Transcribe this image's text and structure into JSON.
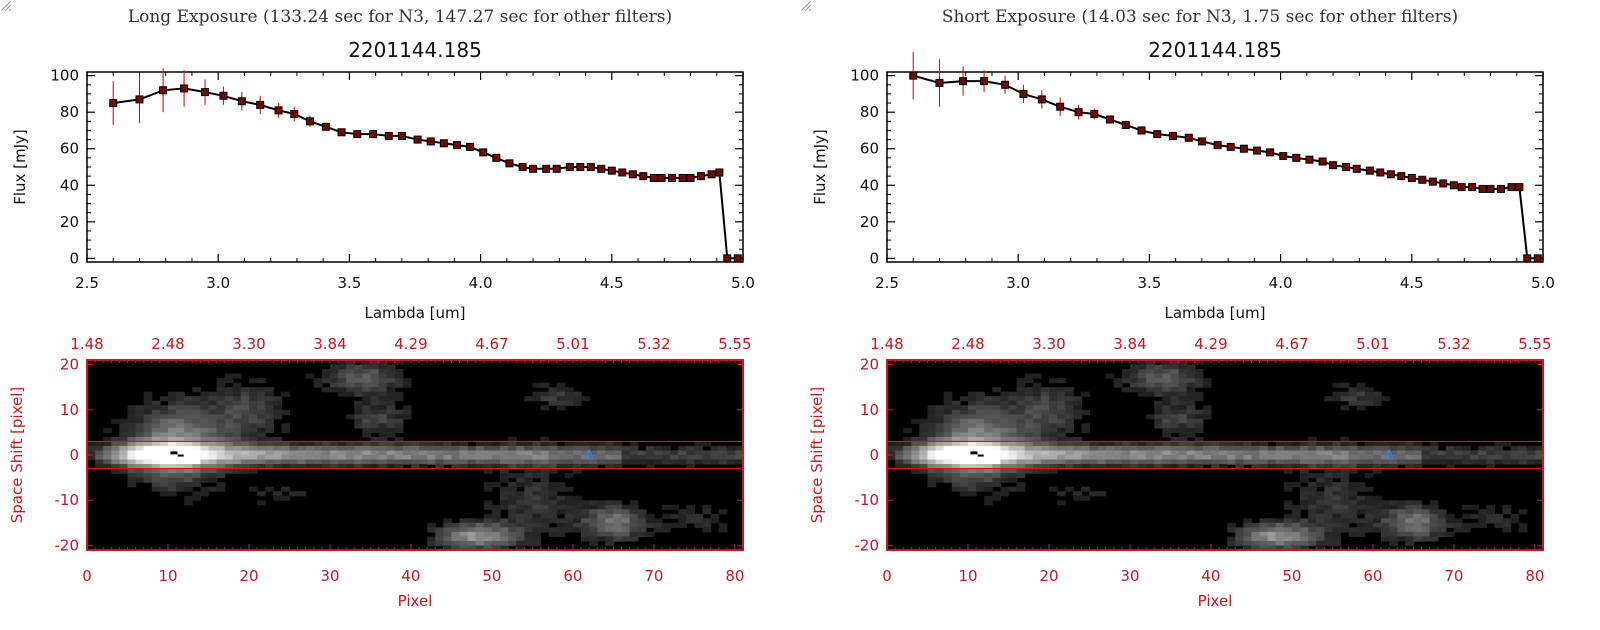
{
  "chart_data": [
    {
      "panel_title": "Long Exposure (133.24 sec for N3, 147.27 sec for other filters)",
      "spectrum": {
        "type": "line",
        "title": "2201144.185",
        "xlabel": "Lambda [um]",
        "ylabel": "Flux [mJy]",
        "xlim": [
          2.5,
          5.0
        ],
        "ylim": [
          -2,
          102
        ],
        "xticks": [
          "2.5",
          "3.0",
          "3.5",
          "4.0",
          "4.5",
          "5.0"
        ],
        "yticks": [
          "0",
          "20",
          "40",
          "60",
          "80",
          "100"
        ],
        "x": [
          2.6,
          2.7,
          2.79,
          2.87,
          2.95,
          3.02,
          3.09,
          3.16,
          3.23,
          3.29,
          3.35,
          3.41,
          3.47,
          3.53,
          3.59,
          3.65,
          3.7,
          3.76,
          3.81,
          3.86,
          3.91,
          3.96,
          4.01,
          4.06,
          4.11,
          4.16,
          4.2,
          4.25,
          4.29,
          4.34,
          4.38,
          4.42,
          4.46,
          4.5,
          4.54,
          4.58,
          4.62,
          4.66,
          4.69,
          4.73,
          4.77,
          4.8,
          4.84,
          4.88,
          4.91,
          4.94,
          4.98
        ],
        "y": [
          85,
          87,
          92,
          93,
          91,
          89,
          86,
          84,
          81,
          79,
          75,
          72,
          69,
          68,
          68,
          67,
          67,
          65,
          64,
          63,
          62,
          61,
          58,
          55,
          52,
          50,
          49,
          49,
          49,
          50,
          50,
          50,
          49,
          48,
          47,
          46,
          45,
          44,
          44,
          44,
          44,
          44,
          45,
          46,
          47,
          0,
          0
        ],
        "err": [
          12,
          13,
          12,
          10,
          7,
          5,
          5,
          5,
          4,
          4,
          3,
          2,
          2,
          2,
          2,
          2,
          2,
          2,
          2,
          2,
          2,
          2,
          2,
          2,
          2,
          1,
          1,
          1,
          1,
          1,
          1,
          1,
          1,
          1,
          1,
          1,
          1,
          1,
          1,
          1,
          1,
          1,
          1,
          2,
          2,
          0,
          0
        ]
      },
      "image": {
        "type": "heatmap",
        "xlabel": "Pixel",
        "ylabel": "Space Shift [pixel]",
        "xlim": [
          0,
          81
        ],
        "ylim": [
          -21,
          21
        ],
        "xticks": [
          "0",
          "10",
          "20",
          "30",
          "40",
          "50",
          "60",
          "70",
          "80"
        ],
        "yticks": [
          "-20",
          "-10",
          "0",
          "10",
          "20"
        ],
        "top_ticks": [
          "1.48",
          "2.48",
          "3.30",
          "3.84",
          "4.29",
          "4.67",
          "5.01",
          "5.32",
          "5.55"
        ],
        "aperture": [
          -3,
          3
        ],
        "marker_pixel": 62,
        "marker_shift": 0
      }
    },
    {
      "panel_title": "Short Exposure (14.03 sec for N3, 1.75 sec for other filters)",
      "spectrum": {
        "type": "line",
        "title": "2201144.185",
        "xlabel": "Lambda [um]",
        "ylabel": "Flux [mJy]",
        "xlim": [
          2.5,
          5.0
        ],
        "ylim": [
          -2,
          102
        ],
        "xticks": [
          "2.5",
          "3.0",
          "3.5",
          "4.0",
          "4.5",
          "5.0"
        ],
        "yticks": [
          "0",
          "20",
          "40",
          "60",
          "80",
          "100"
        ],
        "x": [
          2.6,
          2.7,
          2.79,
          2.87,
          2.95,
          3.02,
          3.09,
          3.16,
          3.23,
          3.29,
          3.35,
          3.41,
          3.47,
          3.53,
          3.59,
          3.65,
          3.7,
          3.76,
          3.81,
          3.86,
          3.91,
          3.96,
          4.01,
          4.06,
          4.11,
          4.16,
          4.2,
          4.25,
          4.29,
          4.34,
          4.38,
          4.42,
          4.46,
          4.5,
          4.54,
          4.58,
          4.62,
          4.66,
          4.69,
          4.73,
          4.77,
          4.8,
          4.84,
          4.88,
          4.91,
          4.94,
          4.98
        ],
        "y": [
          100,
          96,
          97,
          97,
          95,
          90,
          87,
          83,
          80,
          79,
          76,
          73,
          70,
          68,
          67,
          66,
          64,
          62,
          61,
          60,
          59,
          58,
          56,
          55,
          54,
          53,
          51,
          50,
          49,
          48,
          47,
          46,
          45,
          44,
          43,
          42,
          41,
          40,
          39,
          39,
          38,
          38,
          38,
          39,
          39,
          0,
          0
        ],
        "err": [
          13,
          13,
          8,
          6,
          5,
          5,
          5,
          5,
          4,
          3,
          2,
          2,
          2,
          2,
          2,
          2,
          2,
          2,
          2,
          2,
          2,
          2,
          2,
          2,
          2,
          1,
          1,
          1,
          1,
          1,
          1,
          1,
          1,
          1,
          1,
          1,
          1,
          1,
          1,
          1,
          1,
          1,
          1,
          2,
          2,
          0,
          0
        ]
      },
      "image": {
        "type": "heatmap",
        "xlabel": "Pixel",
        "ylabel": "Space Shift [pixel]",
        "xlim": [
          0,
          81
        ],
        "ylim": [
          -21,
          21
        ],
        "xticks": [
          "0",
          "10",
          "20",
          "30",
          "40",
          "50",
          "60",
          "70",
          "80"
        ],
        "yticks": [
          "-20",
          "-10",
          "0",
          "10",
          "20"
        ],
        "top_ticks": [
          "1.48",
          "2.48",
          "3.30",
          "3.84",
          "4.29",
          "4.67",
          "5.01",
          "5.32",
          "5.55"
        ],
        "aperture": [
          -3,
          3
        ],
        "marker_pixel": 62,
        "marker_shift": 0
      }
    }
  ],
  "colors": {
    "line": "#000000",
    "marker": "#6e0a0a",
    "errorbar": "#dd1111",
    "image_frame": "#c8161e",
    "aperture_line": "#e01010",
    "source_marker": "#3a7de0"
  },
  "icons": {
    "resize": "resize-grip-icon"
  }
}
